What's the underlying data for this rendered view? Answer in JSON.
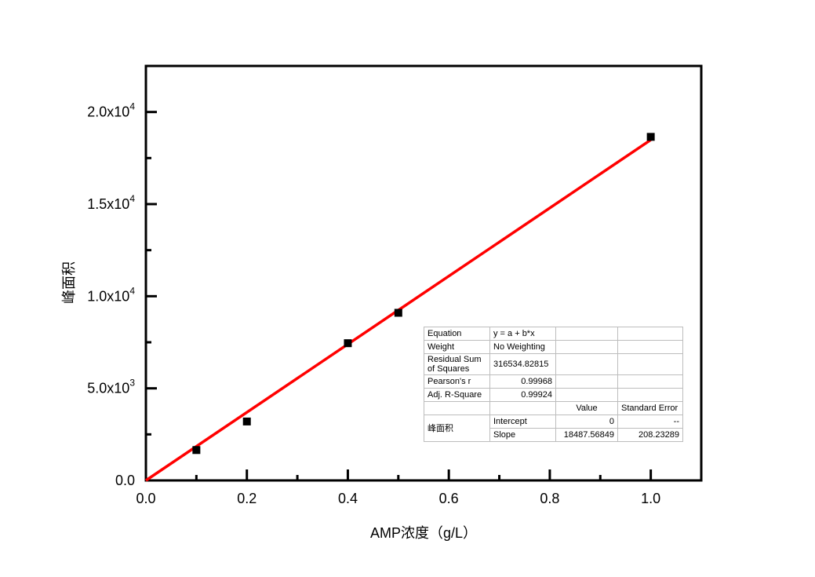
{
  "chart_data": {
    "type": "scatter",
    "title": "",
    "xlabel": "AMP浓度（g/L）",
    "ylabel": "峰面积",
    "xlim": [
      0.0,
      1.1
    ],
    "ylim": [
      0,
      22500
    ],
    "x_ticks": [
      {
        "value": 0.0,
        "label": "0.0"
      },
      {
        "value": 0.2,
        "label": "0.2"
      },
      {
        "value": 0.4,
        "label": "0.4"
      },
      {
        "value": 0.6,
        "label": "0.6"
      },
      {
        "value": 0.8,
        "label": "0.8"
      },
      {
        "value": 1.0,
        "label": "1.0"
      }
    ],
    "y_ticks": [
      {
        "value": 0,
        "mantissa": "0.0",
        "exp": ""
      },
      {
        "value": 5000,
        "mantissa": "5.0x10",
        "exp": "3"
      },
      {
        "value": 10000,
        "mantissa": "1.0x10",
        "exp": "4"
      },
      {
        "value": 15000,
        "mantissa": "1.5x10",
        "exp": "4"
      },
      {
        "value": 20000,
        "mantissa": "2.0x10",
        "exp": "4"
      }
    ],
    "grid": false,
    "series": [
      {
        "marker": "square",
        "color": "#000000",
        "points": [
          {
            "x": 0.1,
            "y": 1650
          },
          {
            "x": 0.2,
            "y": 3200
          },
          {
            "x": 0.4,
            "y": 7450
          },
          {
            "x": 0.5,
            "y": 9100
          },
          {
            "x": 1.0,
            "y": 18650
          }
        ]
      },
      {
        "type": "line",
        "color": "#ff0000",
        "fit": {
          "intercept": 0,
          "slope": 18487.56849
        },
        "x_range": [
          0.0,
          1.0
        ]
      }
    ]
  },
  "stats_table": {
    "rows": [
      [
        "Equation",
        "y = a + b*x",
        "",
        ""
      ],
      [
        "Weight",
        "No Weighting",
        "",
        ""
      ],
      [
        "Residual Sum of Squares",
        "316534.82815",
        "",
        ""
      ],
      [
        "Pearson's r",
        "0.99968",
        "",
        ""
      ],
      [
        "Adj. R-Square",
        "0.99924",
        "",
        ""
      ],
      [
        "",
        "",
        "Value",
        "Standard Error"
      ]
    ],
    "group_label": "峰面积",
    "param_rows": [
      [
        "Intercept",
        "0",
        "--"
      ],
      [
        "Slope",
        "18487.56849",
        "208.23289"
      ]
    ]
  }
}
